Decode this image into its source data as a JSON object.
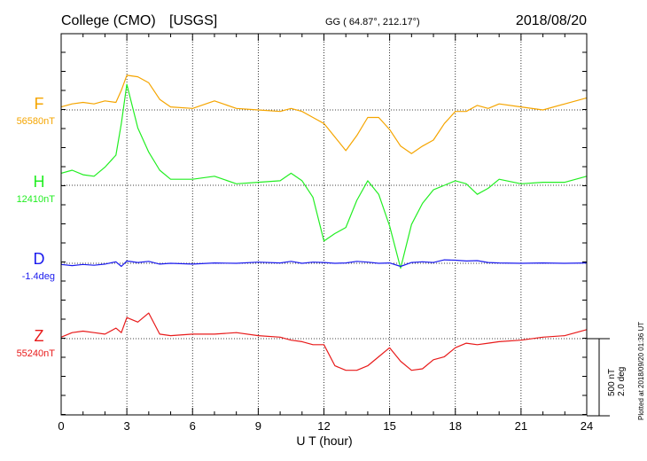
{
  "header": {
    "station": "College (CMO)",
    "source": "[USGS]",
    "coords": "GG ( 64.87°, 212.17°)",
    "date": "2018/08/20"
  },
  "footer": {
    "plotted": "Plotted at 2018/09/20 01:36 UT"
  },
  "chart_data": {
    "type": "line",
    "xlabel": "U T (hour)",
    "xlim": [
      0,
      24
    ],
    "xticks": [
      "0",
      "3",
      "6",
      "9",
      "12",
      "15",
      "18",
      "21",
      "24"
    ],
    "grid": "dotted vertical lines every 3 hours, dotted baseline per component",
    "scale_bar": {
      "label1": "500 nT",
      "label2": "2.0 deg"
    },
    "x": [
      0,
      0.5,
      1,
      1.5,
      2,
      2.5,
      2.75,
      3,
      3.5,
      4,
      4.5,
      5,
      6,
      7,
      8,
      9,
      10,
      10.5,
      11,
      11.5,
      12,
      12.5,
      13,
      13.5,
      14,
      14.5,
      15,
      15.5,
      16,
      16.5,
      17,
      17.5,
      18,
      18.5,
      19,
      19.5,
      20,
      21,
      22,
      23,
      24
    ],
    "series": [
      {
        "name": "F",
        "baseline": "56580nT",
        "color": "#f5a500",
        "values": [
          20,
          40,
          50,
          40,
          60,
          50,
          130,
          230,
          220,
          180,
          70,
          20,
          10,
          60,
          10,
          0,
          -10,
          10,
          -10,
          -50,
          -90,
          -180,
          -270,
          -170,
          -50,
          -50,
          -130,
          -240,
          -290,
          -240,
          -200,
          -90,
          -10,
          -10,
          30,
          10,
          40,
          20,
          0,
          40,
          80
        ]
      },
      {
        "name": "H",
        "baseline": "12410nT",
        "color": "#22ee22",
        "values": [
          80,
          100,
          70,
          60,
          120,
          200,
          410,
          670,
          380,
          220,
          100,
          40,
          40,
          60,
          10,
          20,
          30,
          80,
          30,
          -80,
          -370,
          -320,
          -280,
          -100,
          30,
          -60,
          -270,
          -550,
          -260,
          -120,
          -30,
          0,
          30,
          10,
          -60,
          -20,
          40,
          10,
          20,
          20,
          60
        ]
      },
      {
        "name": "D",
        "baseline": "-1.4deg",
        "color": "#1a1aee",
        "values": [
          -0.03,
          -0.06,
          -0.03,
          -0.05,
          -0.02,
          0.04,
          -0.08,
          0.06,
          0.02,
          0.05,
          -0.02,
          0.0,
          -0.02,
          0.01,
          0.0,
          0.03,
          0.01,
          0.05,
          0.0,
          0.03,
          0.02,
          0.0,
          0.01,
          0.05,
          0.03,
          0.0,
          0.01,
          -0.08,
          0.02,
          0.04,
          0.02,
          0.09,
          0.08,
          0.06,
          0.07,
          0.02,
          0.01,
          0.0,
          0.01,
          0.0,
          0.01
        ]
      },
      {
        "name": "Z",
        "baseline": "55240nT",
        "color": "#e81a1a",
        "values": [
          10,
          40,
          50,
          40,
          30,
          70,
          40,
          140,
          110,
          170,
          30,
          20,
          30,
          30,
          40,
          20,
          10,
          -10,
          -20,
          -40,
          -40,
          -180,
          -210,
          -210,
          -180,
          -120,
          -60,
          -150,
          -210,
          -200,
          -140,
          -120,
          -60,
          -30,
          -40,
          -30,
          -20,
          -10,
          10,
          20,
          60
        ]
      }
    ]
  }
}
